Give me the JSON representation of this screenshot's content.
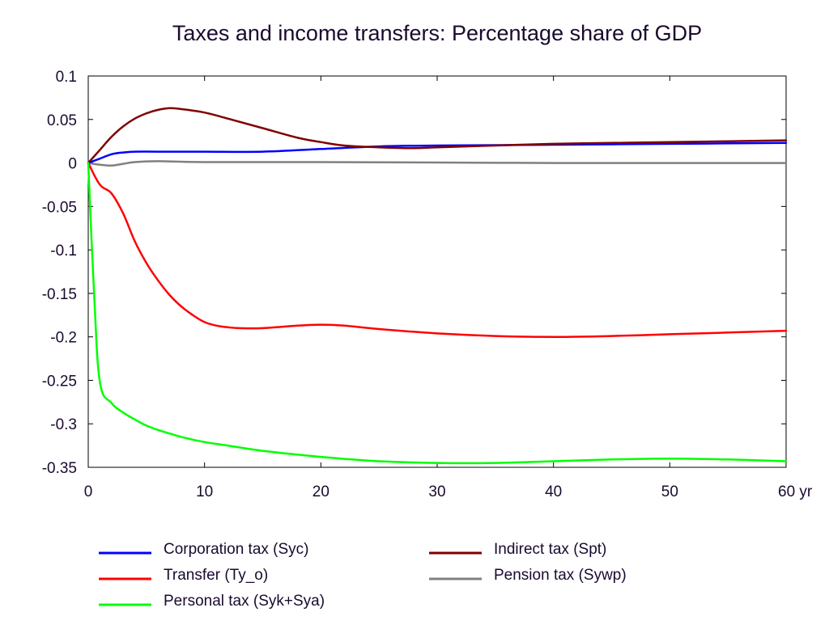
{
  "chart_data": {
    "type": "line",
    "title": "Taxes and income transfers: Percentage share of GDP",
    "xlabel": "",
    "ylabel": "",
    "x_unit": "yr",
    "xlim": [
      0,
      60
    ],
    "ylim": [
      -0.35,
      0.1
    ],
    "x_ticks": [
      0,
      10,
      20,
      30,
      40,
      50,
      60
    ],
    "x_tick_labels": [
      "0",
      "10",
      "20",
      "30",
      "40",
      "50",
      "60 yr"
    ],
    "y_ticks": [
      0.1,
      0.05,
      0,
      -0.05,
      -0.1,
      -0.15,
      -0.2,
      -0.25,
      -0.3,
      -0.35
    ],
    "y_tick_labels": [
      "0.1",
      "0.05",
      "0",
      "-0.05",
      "-0.1",
      "-0.15",
      "-0.2",
      "-0.25",
      "-0.3",
      "-0.35"
    ],
    "grid": false,
    "legend_position": "bottom",
    "series": [
      {
        "name": "Corporation tax (Syc)",
        "color": "#0000ff",
        "x": [
          0,
          1,
          2,
          3,
          4,
          6,
          10,
          15,
          20,
          25,
          30,
          40,
          50,
          60
        ],
        "values": [
          0,
          0.005,
          0.01,
          0.012,
          0.013,
          0.013,
          0.013,
          0.013,
          0.016,
          0.019,
          0.02,
          0.021,
          0.022,
          0.023
        ]
      },
      {
        "name": "Indirect tax (Spt)",
        "color": "#800000",
        "x": [
          0,
          1,
          2,
          3,
          4,
          5,
          6,
          7,
          8,
          10,
          12,
          15,
          18,
          20,
          22,
          25,
          28,
          30,
          35,
          40,
          45,
          50,
          55,
          60
        ],
        "values": [
          0,
          0.015,
          0.03,
          0.042,
          0.051,
          0.057,
          0.061,
          0.063,
          0.062,
          0.058,
          0.051,
          0.04,
          0.029,
          0.024,
          0.02,
          0.018,
          0.017,
          0.018,
          0.02,
          0.022,
          0.023,
          0.024,
          0.025,
          0.026
        ]
      },
      {
        "name": "Transfer (Ty_o)",
        "color": "#ff0000",
        "x": [
          0,
          1,
          2,
          3,
          4,
          5,
          6,
          7,
          8,
          9,
          10,
          11,
          12,
          13,
          15,
          18,
          20,
          22,
          25,
          30,
          35,
          40,
          45,
          50,
          55,
          60
        ],
        "values": [
          0,
          -0.025,
          -0.035,
          -0.058,
          -0.09,
          -0.115,
          -0.135,
          -0.152,
          -0.165,
          -0.175,
          -0.183,
          -0.187,
          -0.189,
          -0.19,
          -0.19,
          -0.187,
          -0.186,
          -0.187,
          -0.191,
          -0.196,
          -0.199,
          -0.2,
          -0.199,
          -0.197,
          -0.195,
          -0.193
        ]
      },
      {
        "name": "Pension tax (Sywp)",
        "color": "#808080",
        "x": [
          0,
          1,
          2,
          3,
          4,
          6,
          10,
          20,
          30,
          40,
          50,
          60
        ],
        "values": [
          0,
          -0.002,
          -0.003,
          -0.001,
          0.001,
          0.002,
          0.001,
          0.001,
          0.0005,
          0,
          0,
          0
        ]
      },
      {
        "name": "Personal tax (Syk+Sya)",
        "color": "#00ff00",
        "x": [
          0,
          0.5,
          1,
          2,
          3,
          4,
          5,
          6,
          8,
          10,
          12,
          15,
          20,
          25,
          30,
          35,
          40,
          45,
          50,
          55,
          60
        ],
        "values": [
          0,
          -0.15,
          -0.252,
          -0.276,
          -0.287,
          -0.295,
          -0.302,
          -0.307,
          -0.315,
          -0.321,
          -0.325,
          -0.331,
          -0.338,
          -0.343,
          -0.345,
          -0.345,
          -0.343,
          -0.341,
          -0.34,
          -0.341,
          -0.343
        ]
      }
    ],
    "legend_items": [
      {
        "label": "Corporation tax (Syc)",
        "color": "#0000ff"
      },
      {
        "label": "Indirect tax (Spt)",
        "color": "#800000"
      },
      {
        "label": "Transfer (Ty_o)",
        "color": "#ff0000"
      },
      {
        "label": "Pension tax (Sywp)",
        "color": "#808080"
      },
      {
        "label": "Personal tax (Syk+Sya)",
        "color": "#00ff00"
      }
    ]
  }
}
